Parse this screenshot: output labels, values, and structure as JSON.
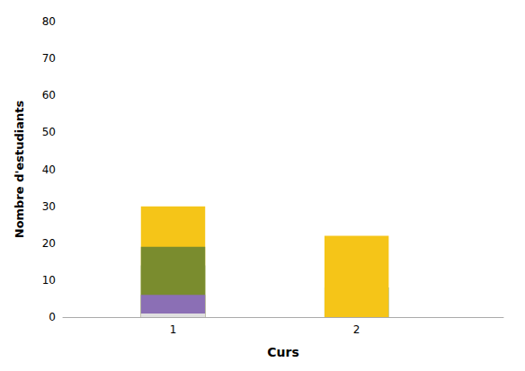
{
  "chart_data": {
    "type": "bar",
    "xlabel": "Curs",
    "ylabel": "Nombre d'estudiants",
    "x": [
      1,
      2
    ],
    "series": [
      {
        "color": "#3a8fa0",
        "values": [
          14,
          8
        ]
      },
      {
        "color": "#f5c518",
        "values": [
          30,
          22
        ]
      },
      {
        "color": "#7a8c2e",
        "values": [
          19,
          0
        ]
      },
      {
        "color": "#8b6fb5",
        "values": [
          6,
          0
        ]
      },
      {
        "color": "#e0e0e0",
        "values": [
          1,
          0
        ]
      }
    ],
    "stacked": true,
    "xlim": [
      0.4,
      2.8
    ],
    "xticks": [
      1,
      2
    ],
    "ylim": [
      0,
      80
    ],
    "yticks": [
      0,
      10,
      20,
      30,
      40,
      50,
      60,
      70,
      80
    ],
    "grid": false
  }
}
